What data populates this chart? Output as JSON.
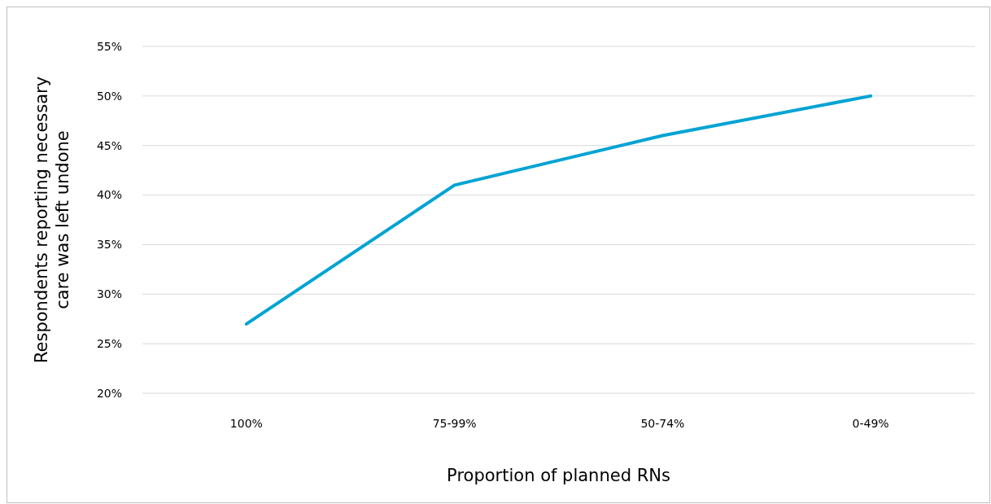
{
  "chart_data": {
    "type": "line",
    "xlabel": "Proportion of planned RNs",
    "ylabel": "Respondents reporting necessary care was left undone",
    "categories": [
      "100%",
      "75-99%",
      "50-74%",
      "0-49%"
    ],
    "series": [
      {
        "color": "#00a3d4",
        "values": [
          27,
          41,
          46,
          50
        ]
      }
    ],
    "ylim": [
      20,
      55
    ],
    "yticks": [
      {
        "value": 20,
        "label": "20%"
      },
      {
        "value": 25,
        "label": "25%"
      },
      {
        "value": 30,
        "label": "30%"
      },
      {
        "value": 35,
        "label": "35%"
      },
      {
        "value": 40,
        "label": "40%"
      },
      {
        "value": 45,
        "label": "45%"
      },
      {
        "value": 50,
        "label": "50%"
      },
      {
        "value": 55,
        "label": "55%"
      }
    ],
    "grid": "y",
    "marker": "none",
    "line_style": "solid"
  }
}
